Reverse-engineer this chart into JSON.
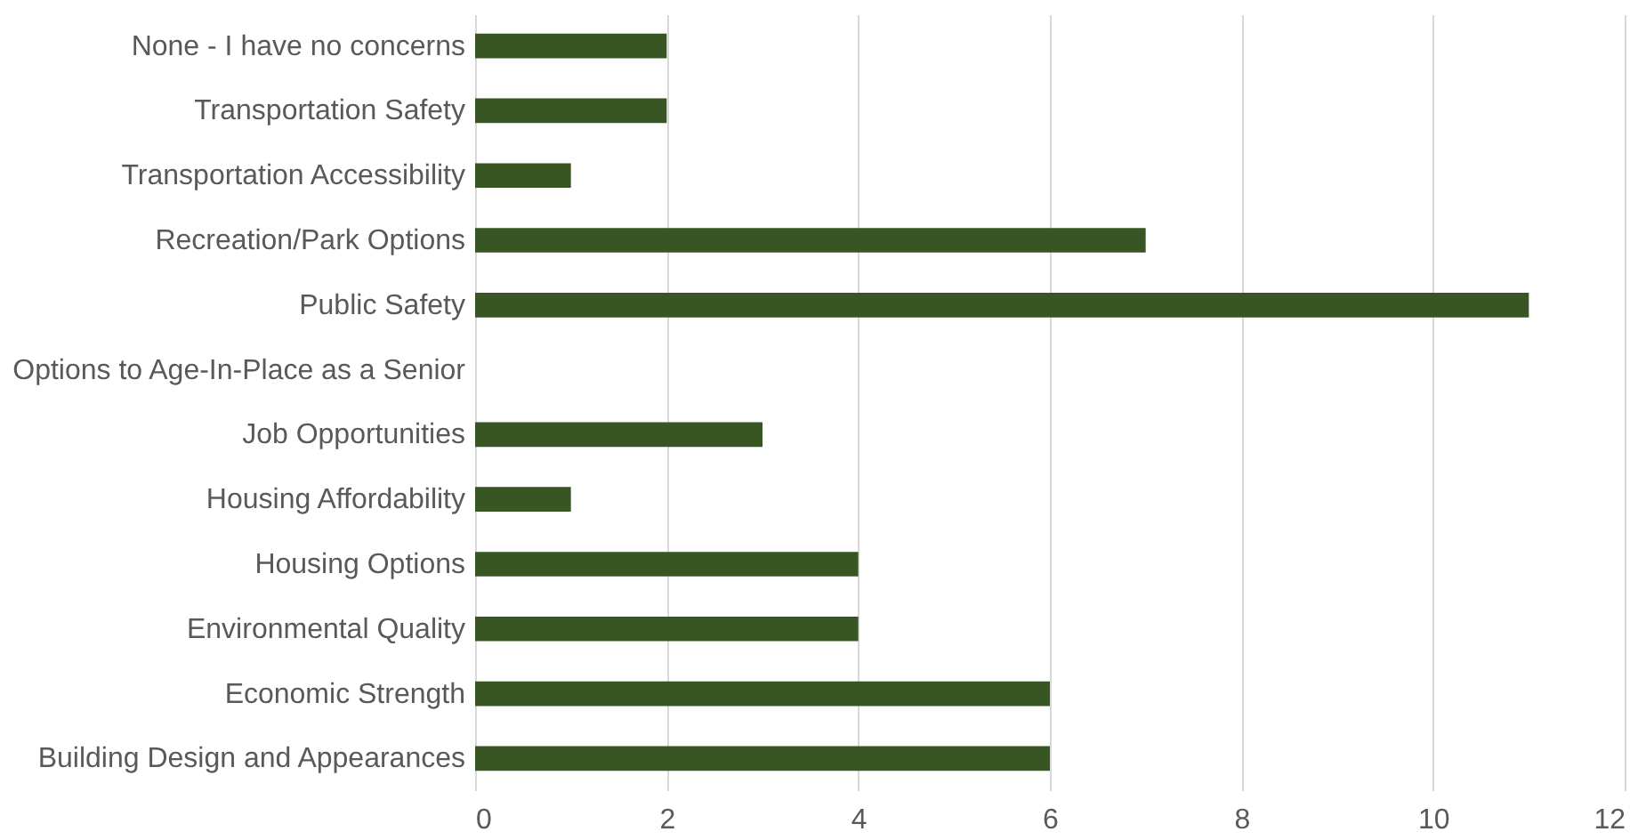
{
  "chart_data": {
    "type": "bar",
    "orientation": "horizontal",
    "categories": [
      "None - I have no concerns",
      "Transportation Safety",
      "Transportation Accessibility",
      "Recreation/Park Options",
      "Public Safety",
      "Options to Age-In-Place as a Senior",
      "Job Opportunities",
      "Housing Affordability",
      "Housing Options",
      "Environmental Quality",
      "Economic Strength",
      "Building Design and Appearances"
    ],
    "values": [
      2,
      2,
      1,
      7,
      11,
      0,
      3,
      1,
      4,
      4,
      6,
      6
    ],
    "color": "#375623",
    "xlim": [
      0,
      12
    ],
    "xticks": [
      0,
      2,
      4,
      6,
      8,
      10,
      12
    ],
    "grid": "x"
  }
}
